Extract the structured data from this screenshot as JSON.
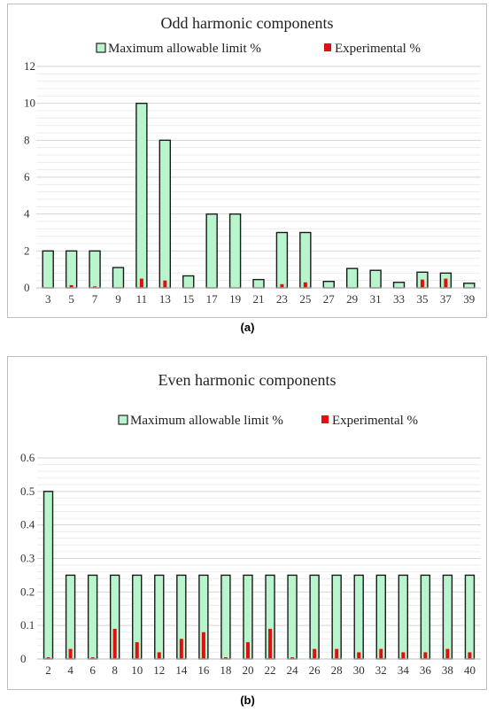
{
  "charts": [
    {
      "type": "bar",
      "title": "Odd harmonic components",
      "caption": "(a)",
      "categories": [
        "3",
        "5",
        "7",
        "9",
        "11",
        "13",
        "15",
        "17",
        "19",
        "21",
        "23",
        "25",
        "27",
        "29",
        "31",
        "33",
        "35",
        "37",
        "39"
      ],
      "series": [
        {
          "name": "Maximum allowable limit %",
          "color": "#b8f5cc",
          "values": [
            2,
            2,
            2,
            1.1,
            10,
            8,
            0.65,
            4,
            4,
            0.45,
            3,
            3,
            0.35,
            1.05,
            0.95,
            0.3,
            0.85,
            0.8,
            0.25
          ]
        },
        {
          "name": "Experimental %",
          "color": "#e01010",
          "values": [
            0.02,
            0.15,
            0.08,
            0.02,
            0.5,
            0.4,
            0.02,
            0.02,
            0.02,
            0.02,
            0.2,
            0.3,
            0.02,
            0.02,
            0.02,
            0.02,
            0.45,
            0.5,
            0.02
          ]
        }
      ],
      "ylim": [
        0,
        12
      ],
      "yticks": [
        "0",
        "2",
        "4",
        "6",
        "8",
        "10",
        "12"
      ],
      "grid": true,
      "legend": "top"
    },
    {
      "type": "bar",
      "title": "Even harmonic components",
      "caption": "(b)",
      "categories": [
        "2",
        "4",
        "6",
        "8",
        "10",
        "12",
        "14",
        "16",
        "18",
        "20",
        "22",
        "24",
        "26",
        "28",
        "30",
        "32",
        "34",
        "36",
        "38",
        "40"
      ],
      "series": [
        {
          "name": "Maximum allowable limit %",
          "color": "#b8f5cc",
          "values": [
            0.5,
            0.25,
            0.25,
            0.25,
            0.25,
            0.25,
            0.25,
            0.25,
            0.25,
            0.25,
            0.25,
            0.25,
            0.25,
            0.25,
            0.25,
            0.25,
            0.25,
            0.25,
            0.25,
            0.25
          ]
        },
        {
          "name": "Experimental %",
          "color": "#e01010",
          "values": [
            0.005,
            0.03,
            0.005,
            0.09,
            0.05,
            0.02,
            0.06,
            0.08,
            0.005,
            0.05,
            0.09,
            0.005,
            0.03,
            0.03,
            0.02,
            0.03,
            0.02,
            0.02,
            0.03,
            0.02
          ]
        }
      ],
      "ylim": [
        0,
        0.6
      ],
      "yticks": [
        "0",
        "0.1",
        "0.2",
        "0.3",
        "0.4",
        "0.5",
        "0.6"
      ],
      "grid": true,
      "legend": "top"
    }
  ]
}
